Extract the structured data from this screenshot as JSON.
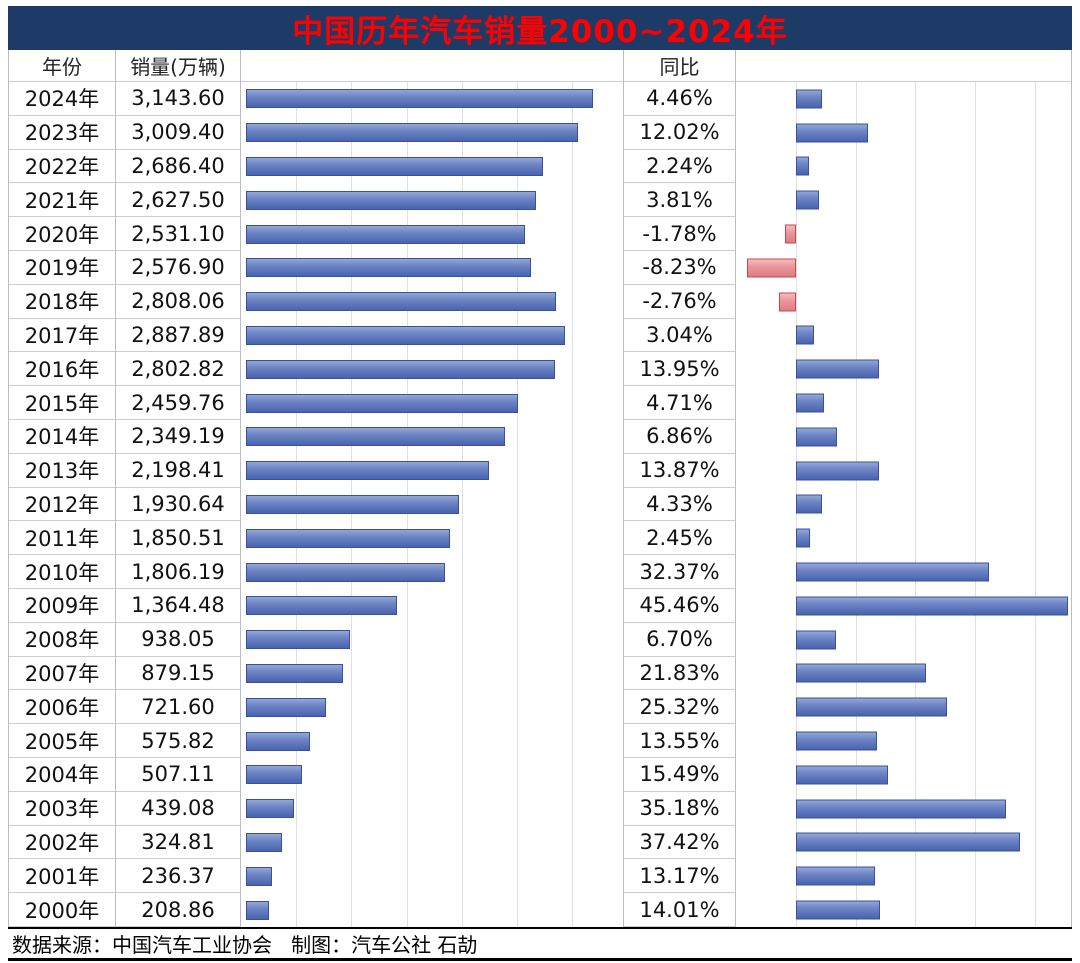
{
  "title": "中国历年汽车销量2000~2024年",
  "header": {
    "year": "年份",
    "sales": "销量(万辆)",
    "yoy": "同比"
  },
  "footer": "数据来源：中国汽车工业协会   制图：汽车公社 石劼",
  "colors": {
    "title_bg": "#1E3A66",
    "title_text": "#FF0000",
    "bar_blue": "#5B74B8",
    "bar_blue_border": "#39509A",
    "bar_red": "#E9959B",
    "bar_red_border": "#C9464E",
    "gridline": "#DCDFE3"
  },
  "chart_data": {
    "type": "bar",
    "title": "中国历年汽车销量2000~2024年",
    "categories": [
      "2024年",
      "2023年",
      "2022年",
      "2021年",
      "2020年",
      "2019年",
      "2018年",
      "2017年",
      "2016年",
      "2015年",
      "2014年",
      "2013年",
      "2012年",
      "2011年",
      "2010年",
      "2009年",
      "2008年",
      "2007年",
      "2006年",
      "2005年",
      "2004年",
      "2003年",
      "2002年",
      "2001年",
      "2000年"
    ],
    "series": [
      {
        "name": "销量(万辆)",
        "values": [
          3143.6,
          3009.4,
          2686.4,
          2627.5,
          2531.1,
          2576.9,
          2808.06,
          2887.89,
          2802.82,
          2459.76,
          2349.19,
          2198.41,
          1930.64,
          1850.51,
          1806.19,
          1364.48,
          938.05,
          879.15,
          721.6,
          575.82,
          507.11,
          439.08,
          324.81,
          236.37,
          208.86
        ]
      },
      {
        "name": "同比",
        "values": [
          4.46,
          12.02,
          2.24,
          3.81,
          -1.78,
          -8.23,
          -2.76,
          3.04,
          13.95,
          4.71,
          6.86,
          13.87,
          4.33,
          2.45,
          32.37,
          45.46,
          6.7,
          21.83,
          25.32,
          13.55,
          15.49,
          35.18,
          37.42,
          13.17,
          14.01
        ]
      }
    ],
    "sales_axis": {
      "max": 3460,
      "grid_step": 500
    },
    "yoy_axis": {
      "min": -10,
      "max": 46,
      "grid_step": 10
    },
    "grid": true,
    "legend_position": "none"
  },
  "rows": [
    {
      "year": "2024年",
      "sales": "3,143.60",
      "yoy": "4.46%"
    },
    {
      "year": "2023年",
      "sales": "3,009.40",
      "yoy": "12.02%"
    },
    {
      "year": "2022年",
      "sales": "2,686.40",
      "yoy": "2.24%"
    },
    {
      "year": "2021年",
      "sales": "2,627.50",
      "yoy": "3.81%"
    },
    {
      "year": "2020年",
      "sales": "2,531.10",
      "yoy": "-1.78%"
    },
    {
      "year": "2019年",
      "sales": "2,576.90",
      "yoy": "-8.23%"
    },
    {
      "year": "2018年",
      "sales": "2,808.06",
      "yoy": "-2.76%"
    },
    {
      "year": "2017年",
      "sales": "2,887.89",
      "yoy": "3.04%"
    },
    {
      "year": "2016年",
      "sales": "2,802.82",
      "yoy": "13.95%"
    },
    {
      "year": "2015年",
      "sales": "2,459.76",
      "yoy": "4.71%"
    },
    {
      "year": "2014年",
      "sales": "2,349.19",
      "yoy": "6.86%"
    },
    {
      "year": "2013年",
      "sales": "2,198.41",
      "yoy": "13.87%"
    },
    {
      "year": "2012年",
      "sales": "1,930.64",
      "yoy": "4.33%"
    },
    {
      "year": "2011年",
      "sales": "1,850.51",
      "yoy": "2.45%"
    },
    {
      "year": "2010年",
      "sales": "1,806.19",
      "yoy": "32.37%"
    },
    {
      "year": "2009年",
      "sales": "1,364.48",
      "yoy": "45.46%"
    },
    {
      "year": "2008年",
      "sales": "938.05",
      "yoy": "6.70%"
    },
    {
      "year": "2007年",
      "sales": "879.15",
      "yoy": "21.83%"
    },
    {
      "year": "2006年",
      "sales": "721.60",
      "yoy": "25.32%"
    },
    {
      "year": "2005年",
      "sales": "575.82",
      "yoy": "13.55%"
    },
    {
      "year": "2004年",
      "sales": "507.11",
      "yoy": "15.49%"
    },
    {
      "year": "2003年",
      "sales": "439.08",
      "yoy": "35.18%"
    },
    {
      "year": "2002年",
      "sales": "324.81",
      "yoy": "37.42%"
    },
    {
      "year": "2001年",
      "sales": "236.37",
      "yoy": "13.17%"
    },
    {
      "year": "2000年",
      "sales": "208.86",
      "yoy": "14.01%"
    }
  ]
}
